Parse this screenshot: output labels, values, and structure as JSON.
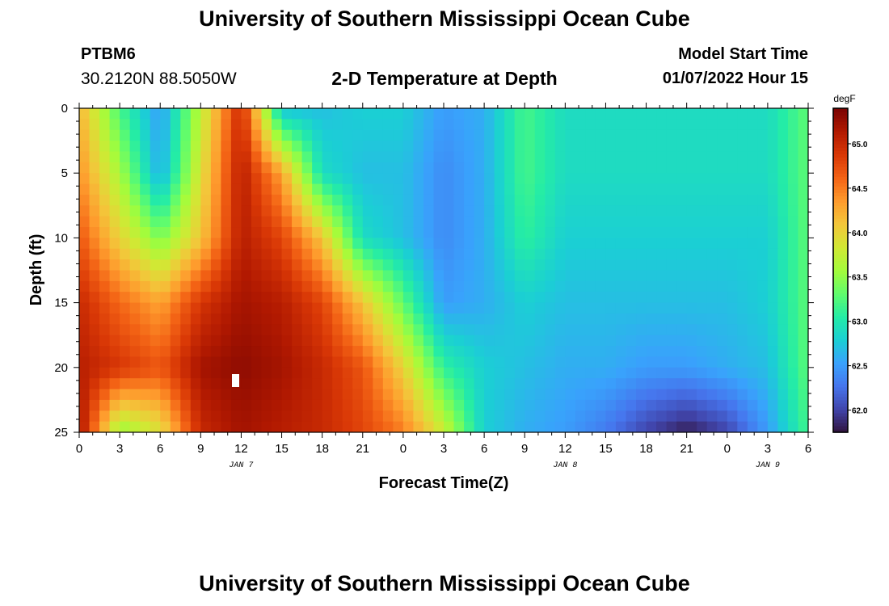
{
  "header": {
    "title": "University of Southern Mississippi Ocean Cube",
    "station_id": "PTBM6",
    "coordinates": "30.2120N  88.5050W",
    "chart_heading": "2-D Temperature at Depth",
    "model_start_label": "Model Start Time",
    "model_start_value": "01/07/2022 Hour 15"
  },
  "footer": {
    "title": "University of Southern Mississippi Ocean Cube"
  },
  "chart_data": {
    "type": "heatmap",
    "title": "2-D Temperature at Depth",
    "xlabel": "Forecast Time(Z)",
    "ylabel": "Depth (ft)",
    "x_range_hours": [
      0,
      54
    ],
    "ylim": [
      0,
      25
    ],
    "y_inverted": true,
    "x_ticks": [
      {
        "hour": 0,
        "label": "0"
      },
      {
        "hour": 3,
        "label": "3"
      },
      {
        "hour": 6,
        "label": "6"
      },
      {
        "hour": 9,
        "label": "9"
      },
      {
        "hour": 12,
        "label": "12"
      },
      {
        "hour": 15,
        "label": "15"
      },
      {
        "hour": 18,
        "label": "18"
      },
      {
        "hour": 21,
        "label": "21"
      },
      {
        "hour": 24,
        "label": "0"
      },
      {
        "hour": 27,
        "label": "3"
      },
      {
        "hour": 30,
        "label": "6"
      },
      {
        "hour": 33,
        "label": "9"
      },
      {
        "hour": 36,
        "label": "12"
      },
      {
        "hour": 39,
        "label": "15"
      },
      {
        "hour": 42,
        "label": "18"
      },
      {
        "hour": 45,
        "label": "21"
      },
      {
        "hour": 48,
        "label": "0"
      },
      {
        "hour": 51,
        "label": "3"
      },
      {
        "hour": 54,
        "label": "6"
      }
    ],
    "y_ticks": [
      {
        "value": 0,
        "label": "0"
      },
      {
        "value": 5,
        "label": "5"
      },
      {
        "value": 10,
        "label": "10"
      },
      {
        "value": 15,
        "label": "15"
      },
      {
        "value": 20,
        "label": "20"
      },
      {
        "value": 25,
        "label": "25"
      }
    ],
    "date_labels": [
      {
        "hour": 12,
        "label": "JAN 7"
      },
      {
        "hour": 36,
        "label": "JAN 8"
      },
      {
        "hour": 51,
        "label": "JAN 9"
      }
    ],
    "colorbar": {
      "unit": "degF",
      "range": [
        61.75,
        65.4
      ],
      "ticks": [
        {
          "value": 62.0,
          "label": "62.0"
        },
        {
          "value": 62.5,
          "label": "62.5"
        },
        {
          "value": 63.0,
          "label": "63.0"
        },
        {
          "value": 63.5,
          "label": "63.5"
        },
        {
          "value": 64.0,
          "label": "64.0"
        },
        {
          "value": 64.5,
          "label": "64.5"
        },
        {
          "value": 65.0,
          "label": "65.0"
        }
      ],
      "colors": [
        "#30123b",
        "#4145ab",
        "#4675ed",
        "#39a2fc",
        "#1bcfd4",
        "#24eca6",
        "#61fc6c",
        "#a4fc3b",
        "#d1e834",
        "#f3c63a",
        "#fe9b2d",
        "#f36315",
        "#d93806",
        "#b11901",
        "#7a0402"
      ]
    },
    "grid_hours": [
      0,
      3,
      6,
      9,
      12,
      15,
      18,
      21,
      24,
      27,
      30,
      33,
      36,
      39,
      42,
      45,
      48,
      51,
      54
    ],
    "grid_depths_ft": [
      0,
      5,
      10,
      15,
      20,
      25
    ],
    "values": [
      [
        64.2,
        63.2,
        62.5,
        63.7,
        65.0,
        62.7,
        62.7,
        62.8,
        62.8,
        62.5,
        62.6,
        63.2,
        62.9,
        62.9,
        62.9,
        62.9,
        62.9,
        62.9,
        63.3
      ],
      [
        64.4,
        63.6,
        62.6,
        63.9,
        65.1,
        64.3,
        62.9,
        62.7,
        62.7,
        62.4,
        62.6,
        63.2,
        62.9,
        62.9,
        62.9,
        62.9,
        62.9,
        62.9,
        63.3
      ],
      [
        64.7,
        64.0,
        63.4,
        64.1,
        65.1,
        64.8,
        64.1,
        62.9,
        62.7,
        62.4,
        62.6,
        63.1,
        62.8,
        62.8,
        62.8,
        62.8,
        62.8,
        62.8,
        63.3
      ],
      [
        65.0,
        64.6,
        64.3,
        64.9,
        65.2,
        65.1,
        64.8,
        64.1,
        63.3,
        62.5,
        62.6,
        62.8,
        62.7,
        62.7,
        62.7,
        62.7,
        62.7,
        62.8,
        63.3
      ],
      [
        65.1,
        64.9,
        64.7,
        65.2,
        65.3,
        65.2,
        65.0,
        64.7,
        64.0,
        63.1,
        62.8,
        62.7,
        62.6,
        62.6,
        62.5,
        62.5,
        62.6,
        62.7,
        63.3
      ],
      [
        65.2,
        63.5,
        63.9,
        65.0,
        65.2,
        65.1,
        65.0,
        64.8,
        64.5,
        63.8,
        62.8,
        62.6,
        62.5,
        62.3,
        62.0,
        61.8,
        62.0,
        62.5,
        63.2
      ]
    ]
  }
}
